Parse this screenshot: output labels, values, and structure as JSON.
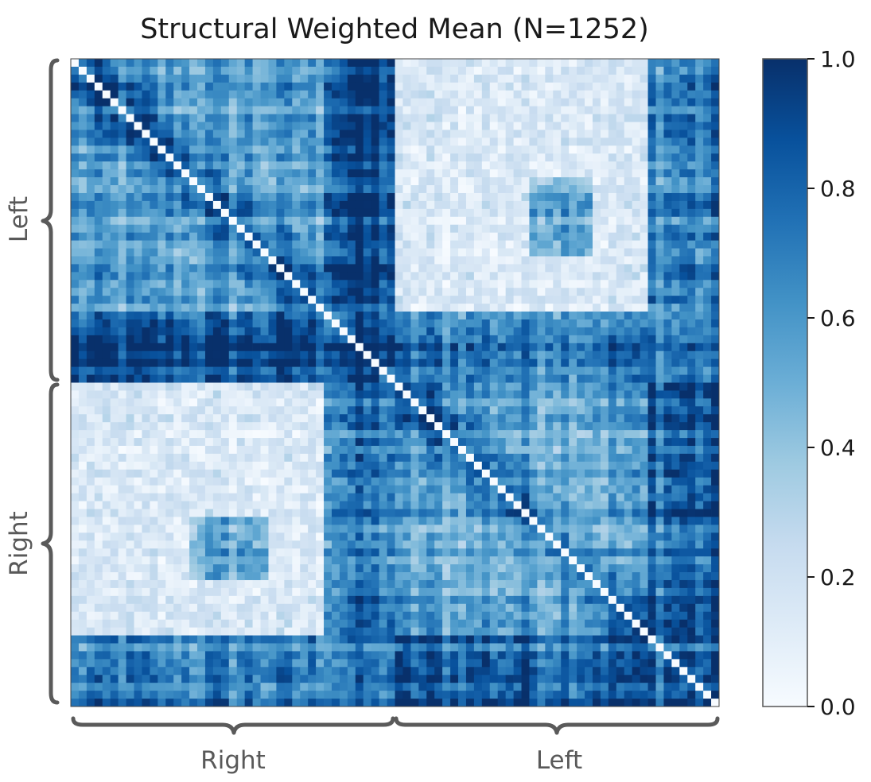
{
  "chart_data": {
    "type": "heatmap",
    "title": "Structural Weighted Mean (N=1252)",
    "colormap": "Blues",
    "colormap_stops": [
      "#f7fbff",
      "#deebf7",
      "#c6dbef",
      "#9ecae1",
      "#6baed6",
      "#4292c6",
      "#2171b5",
      "#08519c",
      "#08306b"
    ],
    "n_regions": 82,
    "hemispheres": {
      "y_axis": [
        "Left",
        "Right"
      ],
      "x_axis": [
        "Right",
        "Left"
      ]
    },
    "colorbar": {
      "range": [
        0.0,
        1.0
      ],
      "ticks": [
        0.0,
        0.2,
        0.4,
        0.6,
        0.8,
        1.0
      ],
      "tick_labels": [
        "0.0",
        "0.2",
        "0.4",
        "0.6",
        "0.8",
        "1.0"
      ]
    },
    "diagonal_value": 0.0,
    "matrix_summary": {
      "within_hemisphere_mean": 0.55,
      "between_hemisphere_mean": 0.15,
      "strong_blocks": [
        {
          "hemisphere_rows": "Left",
          "region_rows": [
            32,
            40
          ],
          "value": 0.9
        },
        {
          "hemisphere_rows": "Right",
          "region_rows": [
            73,
            81
          ],
          "value": 0.85
        },
        {
          "hemisphere_cols": "Right",
          "region_cols": [
            33,
            40
          ],
          "value": 0.85
        },
        {
          "hemisphere_cols": "Left",
          "region_cols": [
            74,
            81
          ],
          "value": 0.75
        }
      ],
      "moderate_blocks": [
        {
          "rows": [
            17,
            24
          ],
          "cols": [
            58,
            65
          ],
          "value": 0.6
        },
        {
          "rows": [
            58,
            65
          ],
          "cols": [
            15,
            23
          ],
          "value": 0.55
        }
      ]
    }
  }
}
